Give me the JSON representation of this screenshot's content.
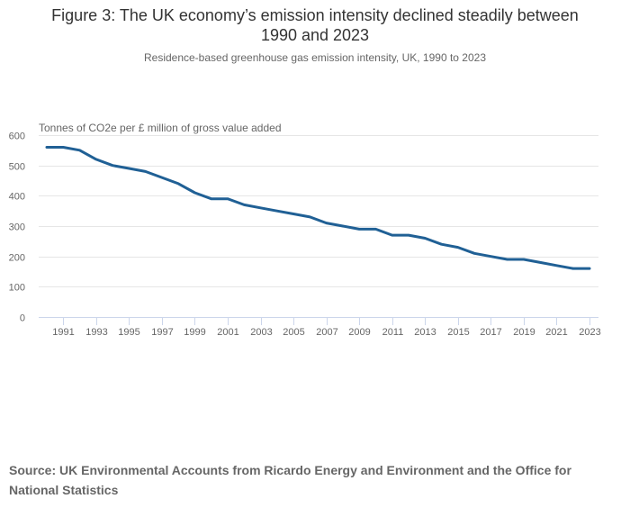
{
  "figure": {
    "title_line1": "Figure 3: The UK economy’s emission intensity declined steadily between",
    "title_line2": "1990 and 2023",
    "subtitle": "Residence-based greenhouse gas emission intensity, UK, 1990 to 2023",
    "source": "Source: UK Environmental Accounts from Ricardo Energy and Environment and the Office for National Statistics"
  },
  "colors": {
    "series": "#206095",
    "grid": "#e6e6e6",
    "axis": "#ccd6eb",
    "text": "#666666",
    "title": "#333333"
  },
  "chart_data": {
    "type": "line",
    "title": "Figure 3: The UK economy’s emission intensity declined steadily between 1990 and 2023",
    "subtitle": "Residence-based greenhouse gas emission intensity, UK, 1990 to 2023",
    "xlabel": "",
    "ylabel": "Tonnes of CO2e per £ million of gross value added",
    "x": [
      1990,
      1991,
      1992,
      1993,
      1994,
      1995,
      1996,
      1997,
      1998,
      1999,
      2000,
      2001,
      2002,
      2003,
      2004,
      2005,
      2006,
      2007,
      2008,
      2009,
      2010,
      2011,
      2012,
      2013,
      2014,
      2015,
      2016,
      2017,
      2018,
      2019,
      2020,
      2021,
      2022,
      2023
    ],
    "series": [
      {
        "name": "Emission intensity",
        "values": [
          560,
          560,
          550,
          520,
          500,
          490,
          480,
          460,
          440,
          410,
          390,
          390,
          370,
          360,
          350,
          340,
          330,
          310,
          300,
          290,
          290,
          270,
          270,
          260,
          240,
          230,
          210,
          200,
          190,
          190,
          180,
          170,
          160,
          160
        ]
      }
    ],
    "xlim": [
      1989.5,
      2023.5
    ],
    "ylim": [
      0,
      600
    ],
    "yticks": [
      0,
      100,
      200,
      300,
      400,
      500,
      600
    ],
    "ytick_labels": [
      "0",
      "100",
      "200",
      "300",
      "400",
      "500",
      "600"
    ],
    "xticks": [
      1991,
      1993,
      1995,
      1997,
      1999,
      2001,
      2003,
      2005,
      2007,
      2009,
      2011,
      2013,
      2015,
      2017,
      2019,
      2021,
      2023
    ],
    "xtick_labels": [
      "1991",
      "1993",
      "1995",
      "1997",
      "1999",
      "2001",
      "2003",
      "2005",
      "2007",
      "2009",
      "2011",
      "2013",
      "2015",
      "2017",
      "2019",
      "2021",
      "2023"
    ],
    "grid": true,
    "legend": "none"
  }
}
